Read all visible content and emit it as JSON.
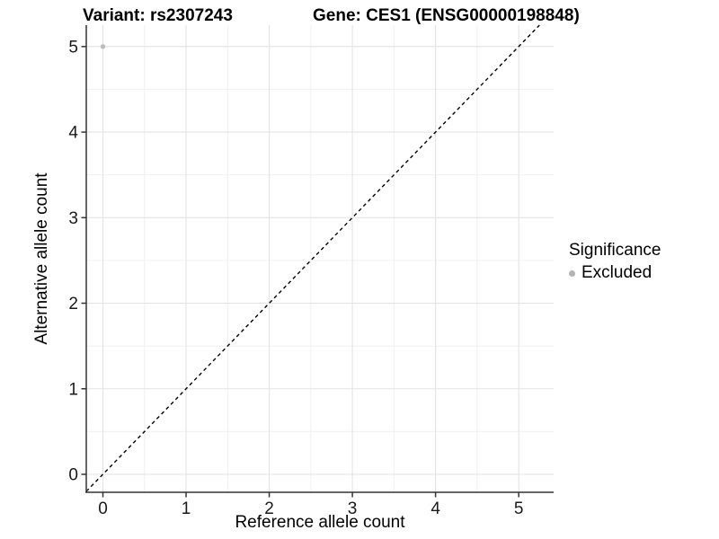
{
  "chart_data": {
    "type": "scatter",
    "title_left": "Variant: rs2307243",
    "title_right": "Gene: CES1 (ENSG00000198848)",
    "xlabel": "Reference allele count",
    "ylabel": "Alternative allele count",
    "xlim": [
      -0.2,
      5.42
    ],
    "ylim": [
      -0.21,
      5.25
    ],
    "xticks": [
      0,
      1,
      2,
      3,
      4,
      5
    ],
    "yticks": [
      0,
      1,
      2,
      3,
      4,
      5
    ],
    "minor_ticks_x": [
      0.5,
      1.5,
      2.5,
      3.5,
      4.5
    ],
    "minor_ticks_y": [
      0.5,
      1.5,
      2.5,
      3.5,
      4.5
    ],
    "grid": "major+minor",
    "legend_position": "right",
    "series": [
      {
        "name": "Excluded",
        "marker": "circle",
        "color": "#bdbdbd",
        "size": 2.7,
        "points": [
          {
            "x": 0,
            "y": 5
          }
        ]
      }
    ],
    "reference_line": {
      "slope": 1,
      "intercept": 0,
      "style": "dashed",
      "color": "#000000"
    },
    "legend": {
      "title": "Significance",
      "items": [
        {
          "label": "Excluded",
          "color": "#b3b3b3",
          "marker": "circle"
        }
      ]
    }
  },
  "style_colors": {
    "background": "#ffffff",
    "grid_major": "#e3e3e3",
    "grid_minor": "#f0f0f0",
    "axis_line": "#333333",
    "tick_mark": "#333333",
    "tick_label": "#1a1a1a",
    "dashed_line": "#000000",
    "point": "#bdbdbd",
    "legend_dot": "#b3b3b3"
  }
}
